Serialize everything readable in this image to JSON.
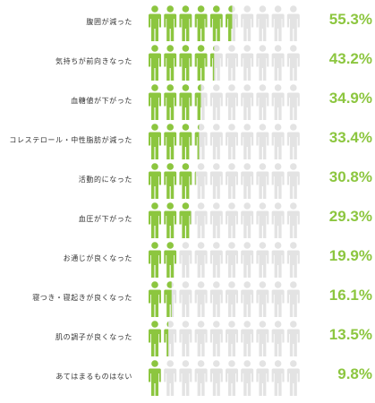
{
  "colors": {
    "filled": "#8cc63f",
    "empty": "#e3e3e3",
    "percent_text": "#8cc63f"
  },
  "chart_data": {
    "type": "pictograph",
    "icon": "person-icon",
    "icons_per_row": 10,
    "unit": "%",
    "categories": [
      "腹囲が減った",
      "気持ちが前向きなった",
      "血糖値が下がった",
      "コレステロール・中性脂肪が減った",
      "活動的になった",
      "血圧が下がった",
      "お通じが良くなった",
      "寝つき・寝起きが良くなった",
      "肌の調子が良くなった",
      "あてはまるものはない"
    ],
    "values": [
      55.3,
      43.2,
      34.9,
      33.4,
      30.8,
      29.3,
      19.9,
      16.1,
      13.5,
      9.8
    ],
    "value_labels": [
      "55.3%",
      "43.2%",
      "34.9%",
      "33.4%",
      "30.8%",
      "29.3%",
      "19.9%",
      "16.1%",
      "13.5%",
      "9.8%"
    ]
  }
}
